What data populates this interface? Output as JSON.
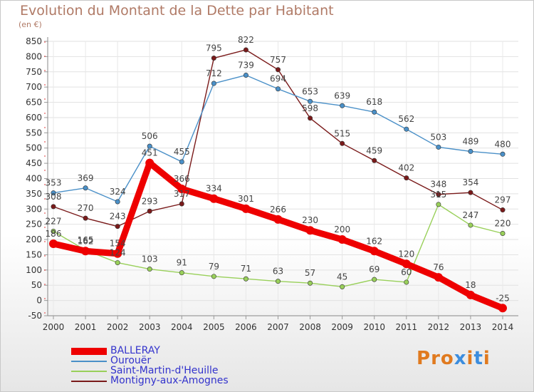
{
  "title": "Evolution du Montant de la Dette par Habitant",
  "unit": "(en €)",
  "brand": {
    "text": "Proxiti",
    "colors": [
      "#e07a1f",
      "#e07a1f",
      "#e07a1f",
      "#3c8dde",
      "#e07a1f",
      "#3c8dde",
      "#e07a1f"
    ]
  },
  "chart_data": {
    "type": "line",
    "x": [
      2000,
      2001,
      2002,
      2003,
      2004,
      2005,
      2006,
      2007,
      2008,
      2009,
      2010,
      2011,
      2012,
      2013,
      2014
    ],
    "ylim": [
      -50,
      850
    ],
    "yticks": [
      -50,
      0,
      50,
      100,
      150,
      200,
      250,
      300,
      350,
      400,
      450,
      500,
      550,
      600,
      650,
      700,
      750,
      800,
      850
    ],
    "grid": true,
    "legend_position": "bottom-left",
    "series": [
      {
        "name": "BALLERAY",
        "color": "#ee0000",
        "values": [
          186,
          162,
          154,
          451,
          366,
          334,
          301,
          266,
          230,
          200,
          162,
          120,
          76,
          18,
          -25
        ]
      },
      {
        "name": "Ourouër",
        "color": "#4a90c8",
        "values": [
          353,
          369,
          324,
          506,
          455,
          712,
          739,
          694,
          653,
          639,
          618,
          562,
          503,
          489,
          480
        ]
      },
      {
        "name": "Saint-Martin-d'Heuille",
        "color": "#99d05a",
        "values": [
          227,
          165,
          124,
          103,
          91,
          79,
          71,
          63,
          57,
          45,
          69,
          60,
          315,
          247,
          220
        ]
      },
      {
        "name": "Montigny-aux-Amognes",
        "color": "#7a1a1a",
        "values": [
          308,
          270,
          243,
          293,
          317,
          795,
          822,
          757,
          598,
          515,
          459,
          402,
          348,
          354,
          297
        ]
      }
    ]
  }
}
